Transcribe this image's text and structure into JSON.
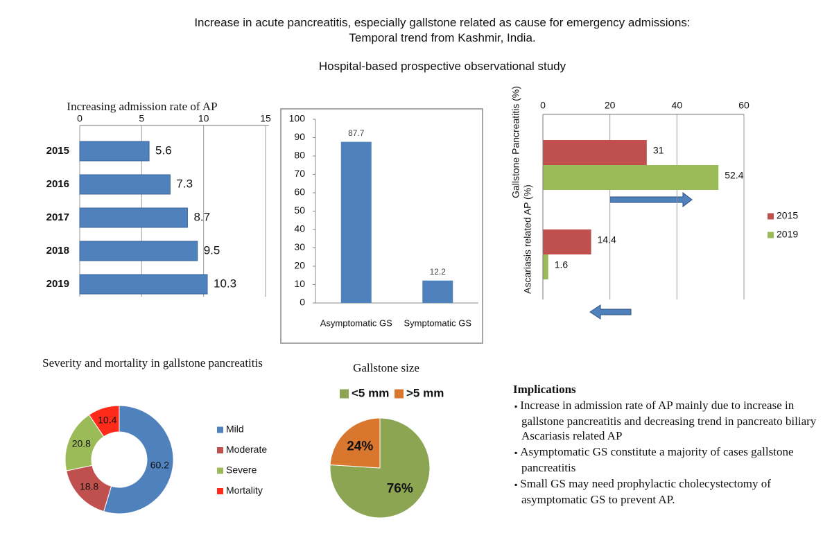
{
  "header": {
    "title": "Increase in acute pancreatitis, especially gallstone related as cause for emergency admissions: Temporal trend from Kashmir, India.",
    "subtitle": "Hospital-based prospective observational study"
  },
  "chart_data": [
    {
      "type": "barh",
      "title": "Increasing admission rate of AP",
      "categories": [
        "2015",
        "2016",
        "2017",
        "2018",
        "2019"
      ],
      "values": [
        5.6,
        7.3,
        8.7,
        9.5,
        10.3
      ],
      "color": "#4f81bd",
      "xlim": [
        0,
        15
      ],
      "xticks": [
        0,
        5,
        10,
        15
      ],
      "grid": true
    },
    {
      "type": "bar",
      "categories": [
        "Asymptomatic GS",
        "Symptomatic GS"
      ],
      "values": [
        87.7,
        12.2
      ],
      "color": "#4f81bd",
      "ylim": [
        0,
        100
      ],
      "yticks": [
        0,
        10,
        20,
        30,
        40,
        50,
        60,
        70,
        80,
        90,
        100
      ]
    },
    {
      "type": "barh",
      "categories": [
        "Gallstone Pancreatitis (%)",
        "Ascariasis related AP (%)"
      ],
      "series": [
        {
          "name": "2015",
          "color": "#c0504d",
          "values": [
            31,
            14.4
          ]
        },
        {
          "name": "2019",
          "color": "#9bbb59",
          "values": [
            52.4,
            1.6
          ]
        }
      ],
      "xlim": [
        0,
        60
      ],
      "xticks": [
        0,
        20,
        40,
        60
      ],
      "grid": true
    },
    {
      "type": "donut",
      "title": "Severity and mortality in gallstone pancreatitis",
      "categories": [
        "Mild",
        "Moderate",
        "Severe",
        "Mortality"
      ],
      "values": [
        60.2,
        18.8,
        20.8,
        10.4
      ],
      "colors": [
        "#4f81bd",
        "#c0504d",
        "#9bbb59",
        "#ff2a1a"
      ]
    },
    {
      "type": "pie",
      "title": "Gallstone size",
      "categories": [
        "<5 mm",
        ">5 mm"
      ],
      "values": [
        76,
        24
      ],
      "value_labels": [
        "76%",
        "24%"
      ],
      "colors": [
        "#8ba552",
        "#d9772e"
      ]
    }
  ],
  "implications": {
    "title": "Implications",
    "items": [
      "Increase in admission rate of AP mainly due to increase in gallstone pancreatitis and decreasing trend in pancreato biliary Ascariasis related AP",
      "Asymptomatic GS constitute a majority of cases gallstone pancreatitis",
      "Small GS may need prophylactic cholecystectomy of asymptomatic GS to prevent AP."
    ]
  }
}
